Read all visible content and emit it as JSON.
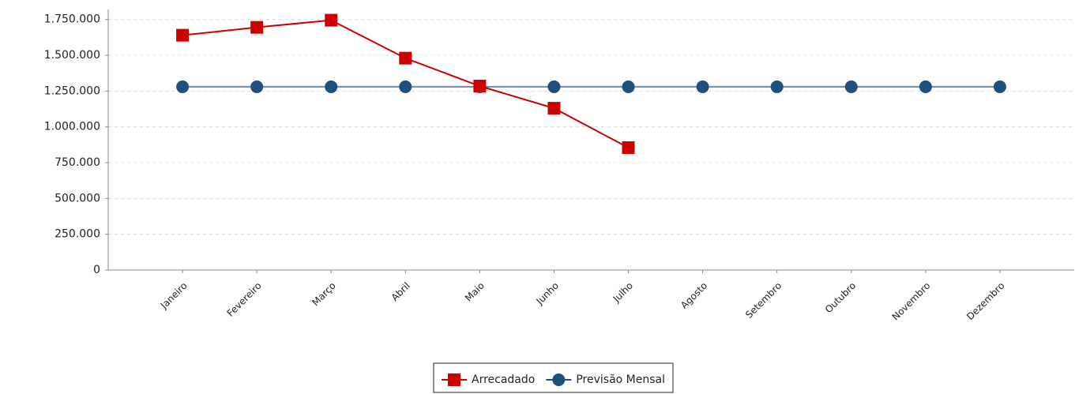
{
  "chart_data": {
    "type": "line",
    "categories": [
      "Janeiro",
      "Fevereiro",
      "Março",
      "Abril",
      "Maio",
      "Junho",
      "Julho",
      "Agosto",
      "Setembro",
      "Outubro",
      "Novembro",
      "Dezembro"
    ],
    "series": [
      {
        "name": "Arrecadado",
        "color": "#cc0000",
        "marker": "square",
        "values": [
          1640000,
          1695000,
          1745000,
          1480000,
          1285000,
          1130000,
          855000,
          null,
          null,
          null,
          null,
          null
        ]
      },
      {
        "name": "Previsão Mensal",
        "color": "#1f4f7d",
        "marker": "circle",
        "values": [
          1280000,
          1280000,
          1280000,
          1280000,
          1280000,
          1280000,
          1280000,
          1280000,
          1280000,
          1280000,
          1280000,
          1280000
        ]
      }
    ],
    "ylim": [
      0,
      1820000
    ],
    "yticks": [
      0,
      {
        "value": 250000,
        "label": "250.000"
      },
      {
        "value": 500000,
        "label": "500.000"
      },
      {
        "value": 750000,
        "label": "750.000"
      },
      {
        "value": 1000000,
        "label": "1.000.000"
      },
      {
        "value": 1250000,
        "label": "1.250.000"
      },
      {
        "value": 1500000,
        "label": "1.500.000"
      },
      {
        "value": 1750000,
        "label": "1.750.000"
      }
    ],
    "grid": true
  }
}
